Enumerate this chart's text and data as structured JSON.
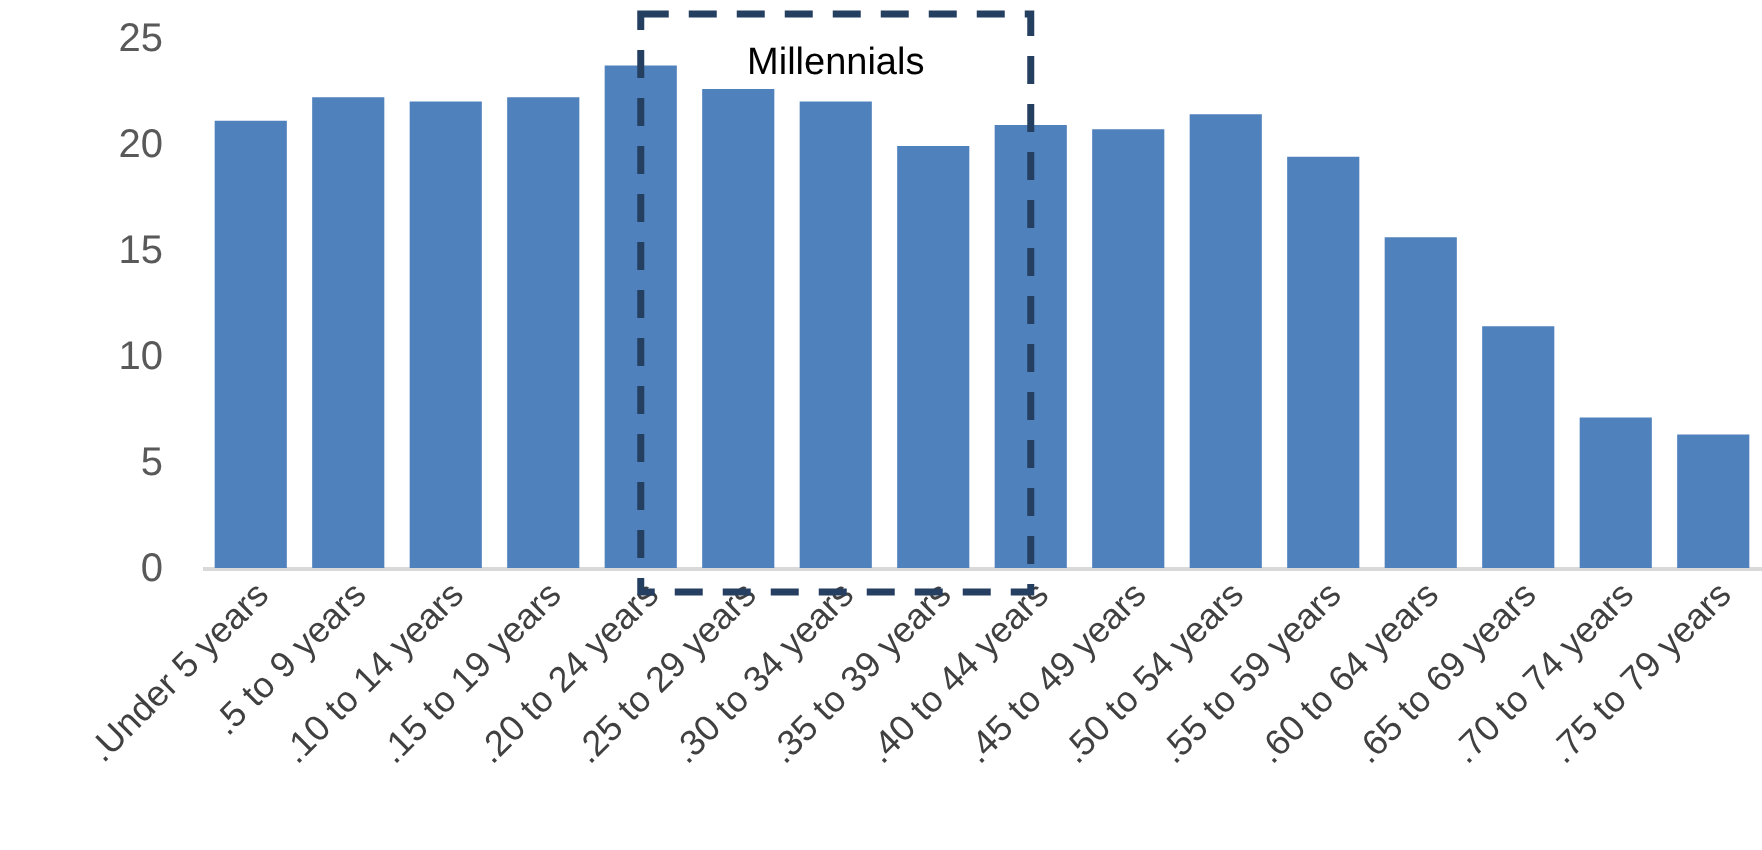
{
  "chart_data": {
    "type": "bar",
    "categories": [
      ".Under 5 years",
      ".5 to 9 years",
      ".10 to 14 years",
      ".15 to 19 years",
      ".20 to 24 years",
      ".25 to 29 years",
      ".30 to 34 years",
      ".35 to 39 years",
      ".40 to 44 years",
      ".45 to 49 years",
      ".50 to 54 years",
      ".55 to 59 years",
      ".60 to 64 years",
      ".65 to 69 years",
      ".70 to 74 years",
      ".75 to 79 years"
    ],
    "values": [
      21.1,
      22.2,
      22.0,
      22.2,
      23.7,
      22.6,
      22.0,
      19.9,
      20.9,
      20.7,
      21.4,
      19.4,
      15.6,
      11.4,
      7.1,
      6.3
    ],
    "color": "#4f81bd",
    "ylim": [
      0,
      25
    ],
    "yticks": [
      0,
      5,
      10,
      15,
      20,
      25
    ],
    "grid": false,
    "annotations": [
      "Millennials"
    ]
  }
}
